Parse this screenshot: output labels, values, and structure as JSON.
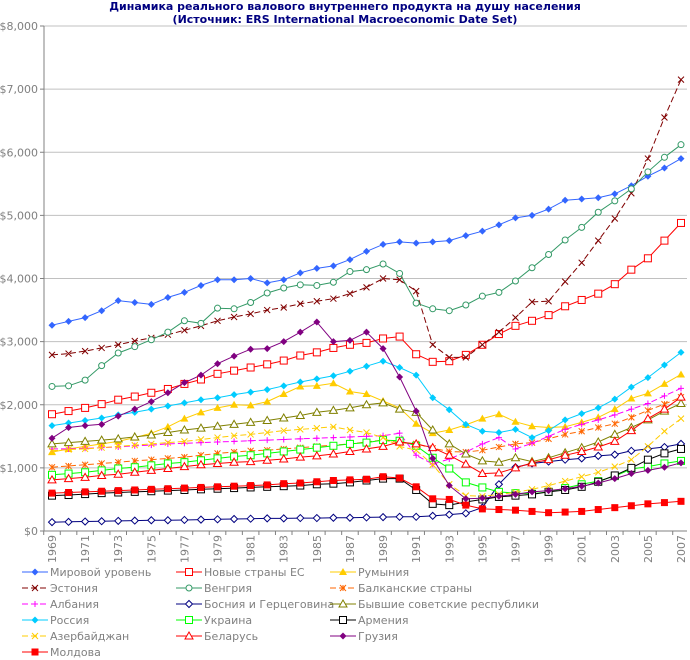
{
  "title_line1": "Динамика реального валового внутреннего продукта на душу населения",
  "title_line2": "(Источник: ERS International Macroeconomic Date Set)",
  "chart_data": {
    "type": "line",
    "title": "Динамика реального валового внутреннего продукта на душу населения (Источник: ERS International Macroeconomic Date Set)",
    "xlabel": "",
    "ylabel": "",
    "ylim": [
      0,
      8000
    ],
    "yticks": [
      0,
      1000,
      2000,
      3000,
      4000,
      5000,
      6000,
      7000,
      8000
    ],
    "ytick_labels": [
      "$0",
      "$1,000",
      "$2,000",
      "$3,000",
      "$4,000",
      "$5,000",
      "$6,000",
      "$7,000",
      "$8,000"
    ],
    "x": [
      1969,
      1970,
      1971,
      1972,
      1973,
      1974,
      1975,
      1976,
      1977,
      1978,
      1979,
      1980,
      1981,
      1982,
      1983,
      1984,
      1985,
      1986,
      1987,
      1988,
      1989,
      1990,
      1991,
      1992,
      1993,
      1994,
      1995,
      1996,
      1997,
      1998,
      1999,
      2000,
      2001,
      2002,
      2003,
      2004,
      2005,
      2006,
      2007
    ],
    "xtick_labels": [
      "1969",
      "1971",
      "1973",
      "1975",
      "1977",
      "1979",
      "1981",
      "1983",
      "1985",
      "1987",
      "1989",
      "1991",
      "1993",
      "1995",
      "1997",
      "1999",
      "2001",
      "2003",
      "2005",
      "2007"
    ],
    "grid": "horizontal",
    "legend_position": "bottom",
    "series": [
      {
        "name": "Мировой уровень",
        "color": "#3366FF",
        "marker": "diamond-filled",
        "dash": false,
        "values": [
          3260,
          3320,
          3380,
          3490,
          3650,
          3620,
          3590,
          3700,
          3780,
          3890,
          3980,
          3980,
          4000,
          3930,
          3980,
          4090,
          4160,
          4200,
          4300,
          4430,
          4540,
          4580,
          4560,
          4580,
          4600,
          4680,
          4750,
          4850,
          4960,
          5000,
          5100,
          5240,
          5260,
          5280,
          5340,
          5470,
          5620,
          5750,
          5900
        ]
      },
      {
        "name": "Новые страны ЕС",
        "color": "#FF0000",
        "marker": "square-open",
        "dash": false,
        "values": [
          1850,
          1900,
          1950,
          2010,
          2080,
          2130,
          2190,
          2250,
          2330,
          2400,
          2490,
          2540,
          2590,
          2640,
          2700,
          2780,
          2830,
          2900,
          2950,
          2980,
          3050,
          3080,
          2800,
          2680,
          2690,
          2790,
          2950,
          3120,
          3250,
          3330,
          3420,
          3560,
          3660,
          3760,
          3910,
          4140,
          4320,
          4600,
          4880
        ]
      },
      {
        "name": "Румыния",
        "color": "#FFCC00",
        "marker": "triangle-filled",
        "dash": false,
        "values": [
          1250,
          1300,
          1340,
          1380,
          1420,
          1480,
          1550,
          1650,
          1780,
          1880,
          1950,
          2000,
          1990,
          2050,
          2170,
          2290,
          2300,
          2340,
          2210,
          2170,
          2060,
          1950,
          1700,
          1550,
          1600,
          1680,
          1780,
          1850,
          1730,
          1660,
          1640,
          1650,
          1720,
          1800,
          1930,
          2100,
          2180,
          2330,
          2480
        ]
      },
      {
        "name": "Эстония",
        "color": "#800000",
        "marker": "x",
        "dash": true,
        "values": [
          2790,
          2810,
          2850,
          2900,
          2950,
          3010,
          3060,
          3110,
          3180,
          3250,
          3330,
          3390,
          3440,
          3500,
          3540,
          3600,
          3640,
          3680,
          3760,
          3860,
          4000,
          3980,
          3800,
          2950,
          2750,
          2750,
          2950,
          3150,
          3380,
          3630,
          3640,
          3950,
          4250,
          4600,
          4950,
          5350,
          5900,
          6550,
          7150
        ]
      },
      {
        "name": "Венгрия",
        "color": "#339966",
        "marker": "circle-open",
        "dash": false,
        "values": [
          2290,
          2300,
          2390,
          2620,
          2820,
          2920,
          3030,
          3150,
          3330,
          3290,
          3530,
          3520,
          3620,
          3770,
          3850,
          3900,
          3890,
          3940,
          4110,
          4140,
          4230,
          4080,
          3610,
          3520,
          3490,
          3580,
          3720,
          3780,
          3960,
          4170,
          4380,
          4610,
          4810,
          5050,
          5230,
          5420,
          5690,
          5920,
          6120
        ]
      },
      {
        "name": "Балканские страны",
        "color": "#FF6600",
        "marker": "asterisk",
        "dash": true,
        "values": [
          1010,
          1030,
          1050,
          1070,
          1090,
          1110,
          1130,
          1150,
          1170,
          1200,
          1230,
          1250,
          1270,
          1280,
          1300,
          1320,
          1340,
          1360,
          1380,
          1410,
          1440,
          1400,
          1380,
          1310,
          1260,
          1250,
          1280,
          1330,
          1380,
          1400,
          1460,
          1530,
          1580,
          1640,
          1700,
          1800,
          1910,
          2010,
          2120
        ]
      },
      {
        "name": "Албания",
        "color": "#FF00FF",
        "marker": "plus",
        "dash": true,
        "values": [
          1300,
          1300,
          1310,
          1320,
          1330,
          1350,
          1360,
          1380,
          1390,
          1400,
          1410,
          1420,
          1430,
          1440,
          1450,
          1460,
          1470,
          1480,
          1490,
          1500,
          1510,
          1550,
          1200,
          1060,
          1140,
          1250,
          1380,
          1480,
          1300,
          1390,
          1500,
          1610,
          1690,
          1760,
          1840,
          1930,
          2020,
          2140,
          2260
        ]
      },
      {
        "name": "Босния и Герцеговина",
        "color": "#000080",
        "marker": "diamond-open",
        "dash": false,
        "values": [
          140,
          145,
          150,
          155,
          160,
          165,
          170,
          170,
          175,
          180,
          185,
          190,
          195,
          200,
          200,
          205,
          205,
          210,
          210,
          215,
          220,
          225,
          225,
          240,
          260,
          280,
          370,
          740,
          1010,
          1070,
          1100,
          1130,
          1150,
          1190,
          1210,
          1270,
          1300,
          1330,
          1380
        ]
      },
      {
        "name": "Бывшие советские республики",
        "color": "#808000",
        "marker": "triangle-open",
        "dash": false,
        "values": [
          1380,
          1400,
          1420,
          1440,
          1460,
          1490,
          1520,
          1560,
          1600,
          1630,
          1660,
          1690,
          1720,
          1750,
          1790,
          1830,
          1880,
          1910,
          1950,
          2000,
          2030,
          1930,
          1880,
          1600,
          1380,
          1220,
          1110,
          1090,
          1160,
          1100,
          1160,
          1240,
          1320,
          1410,
          1530,
          1640,
          1760,
          1900,
          2020
        ]
      },
      {
        "name": "Россия",
        "color": "#00CCFF",
        "marker": "diamond-filled",
        "dash": false,
        "values": [
          1670,
          1710,
          1750,
          1790,
          1840,
          1880,
          1930,
          1980,
          2030,
          2080,
          2110,
          2160,
          2200,
          2240,
          2300,
          2360,
          2410,
          2460,
          2530,
          2610,
          2690,
          2590,
          2470,
          2110,
          1920,
          1690,
          1580,
          1560,
          1610,
          1480,
          1590,
          1760,
          1860,
          1950,
          2090,
          2280,
          2430,
          2630,
          2830
        ]
      },
      {
        "name": "Украина",
        "color": "#00FF00",
        "marker": "square-open",
        "dash": false,
        "values": [
          890,
          910,
          930,
          960,
          990,
          1010,
          1040,
          1070,
          1090,
          1120,
          1150,
          1180,
          1200,
          1230,
          1260,
          1290,
          1320,
          1350,
          1380,
          1400,
          1440,
          1430,
          1350,
          1160,
          990,
          770,
          690,
          620,
          600,
          590,
          620,
          680,
          740,
          790,
          870,
          980,
          1020,
          1070,
          1110
        ]
      },
      {
        "name": "Армения",
        "color": "#000000",
        "marker": "square-open",
        "dash": false,
        "values": [
          560,
          570,
          585,
          600,
          610,
          620,
          630,
          640,
          650,
          660,
          670,
          680,
          690,
          700,
          710,
          720,
          740,
          750,
          770,
          800,
          830,
          830,
          650,
          430,
          410,
          460,
          500,
          540,
          560,
          580,
          620,
          650,
          700,
          780,
          880,
          1000,
          1130,
          1230,
          1300
        ]
      },
      {
        "name": "Азербайджан",
        "color": "#FFCC00",
        "marker": "x",
        "dash": true,
        "values": [
          1270,
          1290,
          1300,
          1320,
          1340,
          1360,
          1380,
          1400,
          1420,
          1450,
          1480,
          1510,
          1530,
          1560,
          1590,
          1610,
          1630,
          1650,
          1600,
          1560,
          1480,
          1340,
          1280,
          1050,
          740,
          560,
          550,
          580,
          610,
          660,
          720,
          790,
          860,
          930,
          1020,
          1130,
          1340,
          1580,
          1780
        ]
      },
      {
        "name": "Беларусь",
        "color": "#FF0000",
        "marker": "triangle-open",
        "dash": false,
        "values": [
          810,
          830,
          850,
          880,
          900,
          930,
          960,
          990,
          1020,
          1050,
          1070,
          1090,
          1100,
          1120,
          1140,
          1170,
          1190,
          1220,
          1260,
          1300,
          1340,
          1410,
          1380,
          1320,
          1200,
          1060,
          910,
          920,
          1000,
          1080,
          1130,
          1200,
          1260,
          1330,
          1420,
          1590,
          1780,
          1930,
          2120
        ]
      },
      {
        "name": "Грузия",
        "color": "#800080",
        "marker": "diamond-filled",
        "dash": false,
        "values": [
          1470,
          1640,
          1670,
          1690,
          1820,
          1930,
          2050,
          2190,
          2350,
          2470,
          2650,
          2770,
          2880,
          2890,
          3000,
          3150,
          3310,
          3000,
          3020,
          3150,
          2890,
          2440,
          1900,
          1150,
          720,
          510,
          520,
          550,
          580,
          620,
          640,
          670,
          710,
          760,
          830,
          910,
          960,
          1010,
          1080
        ]
      },
      {
        "name": "Молдова",
        "color": "#FF0000",
        "marker": "square-filled",
        "dash": false,
        "values": [
          600,
          610,
          620,
          630,
          640,
          650,
          660,
          670,
          680,
          690,
          700,
          710,
          720,
          730,
          750,
          760,
          780,
          800,
          810,
          820,
          860,
          840,
          700,
          510,
          500,
          410,
          350,
          340,
          330,
          310,
          290,
          300,
          310,
          340,
          370,
          400,
          430,
          450,
          470
        ]
      }
    ]
  },
  "legend": {
    "items": [
      "Мировой уровень",
      "Новые страны ЕС",
      "Румыния",
      "Эстония",
      "Венгрия",
      "Балканские страны",
      "Албания",
      "Босния и Герцеговина",
      "Бывшие советские республики",
      "Россия",
      "Украина",
      "Армения",
      "Азербайджан",
      "Беларусь",
      "Грузия",
      "Молдова"
    ]
  }
}
